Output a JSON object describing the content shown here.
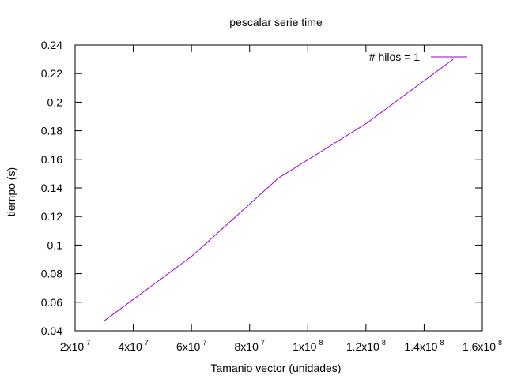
{
  "chart_data": {
    "type": "line",
    "title": "pescalar serie time",
    "xlabel": "Tamanio vector (unidades)",
    "ylabel": "tiempo (s)",
    "xlim": [
      20000000,
      160000000
    ],
    "ylim": [
      0.04,
      0.24
    ],
    "x_ticks": [
      {
        "value": 20000000,
        "mantissa": "2x10",
        "exp": "7"
      },
      {
        "value": 40000000,
        "mantissa": "4x10",
        "exp": "7"
      },
      {
        "value": 60000000,
        "mantissa": "6x10",
        "exp": "7"
      },
      {
        "value": 80000000,
        "mantissa": "8x10",
        "exp": "7"
      },
      {
        "value": 100000000,
        "mantissa": "1x10",
        "exp": "8"
      },
      {
        "value": 120000000,
        "mantissa": "1.2x10",
        "exp": "8"
      },
      {
        "value": 140000000,
        "mantissa": "1.4x10",
        "exp": "8"
      },
      {
        "value": 160000000,
        "mantissa": "1.6x10",
        "exp": "8"
      }
    ],
    "y_ticks": [
      {
        "value": 0.04,
        "label": "0.04"
      },
      {
        "value": 0.06,
        "label": "0.06"
      },
      {
        "value": 0.08,
        "label": "0.08"
      },
      {
        "value": 0.1,
        "label": "0.1"
      },
      {
        "value": 0.12,
        "label": "0.12"
      },
      {
        "value": 0.14,
        "label": "0.14"
      },
      {
        "value": 0.16,
        "label": "0.16"
      },
      {
        "value": 0.18,
        "label": "0.18"
      },
      {
        "value": 0.2,
        "label": "0.2"
      },
      {
        "value": 0.22,
        "label": "0.22"
      },
      {
        "value": 0.24,
        "label": "0.24"
      }
    ],
    "series": [
      {
        "name": "# hilos = 1",
        "color": "#9400d3",
        "x": [
          30000000,
          60000000,
          90000000,
          120000000,
          150000000
        ],
        "y": [
          0.047,
          0.092,
          0.147,
          0.185,
          0.23
        ]
      }
    ],
    "grid": false,
    "legend_position": "top-right"
  }
}
